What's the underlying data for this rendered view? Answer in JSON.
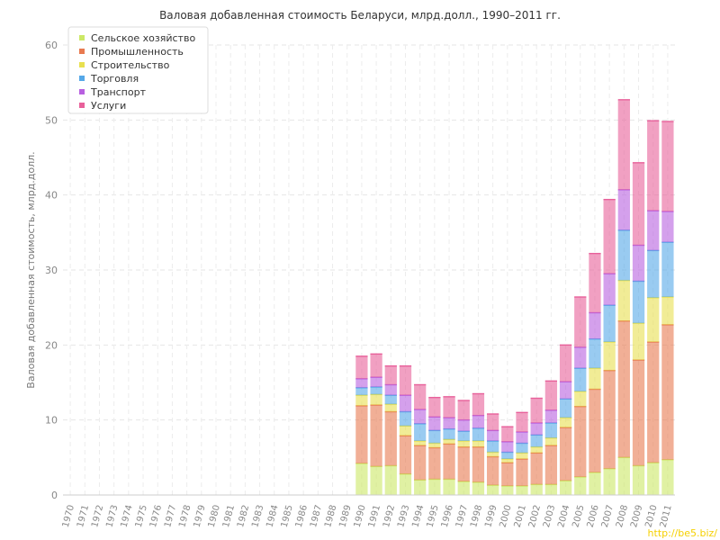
{
  "chart_data": {
    "type": "bar",
    "stacked": true,
    "title": "Валовая добавленная стоимость Беларуси, млрд.долл., 1990–2011 гг.",
    "ylabel": "Валовая добавленная стоимость, млрд.долл.",
    "xlabel": "",
    "ylim": [
      0,
      60
    ],
    "yticks": [
      0,
      10,
      20,
      30,
      40,
      50,
      60
    ],
    "grid": true,
    "legend_position": "top-left",
    "categories": [
      "1970",
      "1971",
      "1972",
      "1973",
      "1974",
      "1975",
      "1976",
      "1977",
      "1978",
      "1979",
      "1980",
      "1981",
      "1982",
      "1983",
      "1984",
      "1985",
      "1986",
      "1987",
      "1988",
      "1989",
      "1990",
      "1991",
      "1992",
      "1993",
      "1994",
      "1995",
      "1996",
      "1997",
      "1998",
      "1999",
      "2000",
      "2001",
      "2002",
      "2003",
      "2004",
      "2005",
      "2006",
      "2007",
      "2008",
      "2009",
      "2010",
      "2011"
    ],
    "series": [
      {
        "name": "Сельское хозяйство",
        "color": "#cce866",
        "values": [
          null,
          null,
          null,
          null,
          null,
          null,
          null,
          null,
          null,
          null,
          null,
          null,
          null,
          null,
          null,
          null,
          null,
          null,
          null,
          null,
          4.2,
          3.8,
          3.9,
          2.8,
          2.0,
          2.1,
          2.1,
          1.8,
          1.7,
          1.3,
          1.2,
          1.2,
          1.4,
          1.4,
          1.9,
          2.4,
          3.0,
          3.5,
          5.0,
          3.9,
          4.3,
          4.7
        ]
      },
      {
        "name": "Промышленность",
        "color": "#e87a50",
        "values": [
          null,
          null,
          null,
          null,
          null,
          null,
          null,
          null,
          null,
          null,
          null,
          null,
          null,
          null,
          null,
          null,
          null,
          null,
          null,
          null,
          7.7,
          8.2,
          7.2,
          5.1,
          4.6,
          4.2,
          4.7,
          4.6,
          4.7,
          3.8,
          3.1,
          3.6,
          4.2,
          5.2,
          7.1,
          9.4,
          11.1,
          13.1,
          18.2,
          14.1,
          16.1,
          18.0
        ]
      },
      {
        "name": "Строительство",
        "color": "#e8e050",
        "values": [
          null,
          null,
          null,
          null,
          null,
          null,
          null,
          null,
          null,
          null,
          null,
          null,
          null,
          null,
          null,
          null,
          null,
          null,
          null,
          null,
          1.4,
          1.4,
          1.0,
          1.3,
          0.6,
          0.6,
          0.6,
          0.8,
          0.8,
          0.6,
          0.5,
          0.8,
          0.8,
          1.0,
          1.3,
          2.0,
          2.8,
          3.8,
          5.4,
          4.9,
          5.9,
          3.7
        ]
      },
      {
        "name": "Торговля",
        "color": "#55a8e8",
        "values": [
          null,
          null,
          null,
          null,
          null,
          null,
          null,
          null,
          null,
          null,
          null,
          null,
          null,
          null,
          null,
          null,
          null,
          null,
          null,
          null,
          1.0,
          1.0,
          1.2,
          1.9,
          2.3,
          1.7,
          1.4,
          1.3,
          1.7,
          1.5,
          0.9,
          1.3,
          1.6,
          2.0,
          2.5,
          3.1,
          3.9,
          4.9,
          6.7,
          5.6,
          6.3,
          7.3
        ]
      },
      {
        "name": "Транспорт",
        "color": "#b860e0",
        "values": [
          null,
          null,
          null,
          null,
          null,
          null,
          null,
          null,
          null,
          null,
          null,
          null,
          null,
          null,
          null,
          null,
          null,
          null,
          null,
          null,
          1.2,
          1.3,
          1.4,
          2.2,
          1.9,
          1.8,
          1.5,
          1.5,
          1.7,
          1.4,
          1.4,
          1.5,
          1.6,
          1.7,
          2.3,
          2.8,
          3.5,
          4.2,
          5.4,
          4.8,
          5.3,
          4.1
        ]
      },
      {
        "name": "Услуги",
        "color": "#e8609a",
        "values": [
          null,
          null,
          null,
          null,
          null,
          null,
          null,
          null,
          null,
          null,
          null,
          null,
          null,
          null,
          null,
          null,
          null,
          null,
          null,
          null,
          3.0,
          3.1,
          2.5,
          3.9,
          3.3,
          2.6,
          2.8,
          2.6,
          2.9,
          2.2,
          2.0,
          2.6,
          3.3,
          3.9,
          4.9,
          6.7,
          7.9,
          9.9,
          12.0,
          11.0,
          12.0,
          12.0
        ]
      }
    ]
  },
  "watermark": "http://be5.biz/"
}
